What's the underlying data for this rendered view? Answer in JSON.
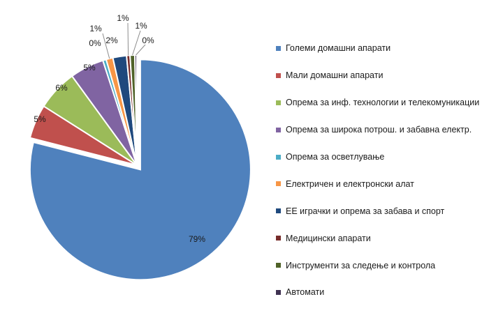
{
  "chart_data": {
    "type": "pie",
    "exploded_slices": [
      0
    ],
    "legend_position": "right",
    "slices": [
      {
        "label": "Големи домашни апарати",
        "value": 79,
        "value_label": "79%",
        "color": "#4F81BD"
      },
      {
        "label": "Мали домашни апарати",
        "value": 5,
        "value_label": "5%",
        "color": "#C0504D"
      },
      {
        "label": "Опрема за инф. технологии и телекомуникации",
        "value": 6,
        "value_label": "6%",
        "color": "#9BBB59"
      },
      {
        "label": "Опрема за широка потрош.  и забавна електр.",
        "value": 5,
        "value_label": "5%",
        "color": "#8064A2"
      },
      {
        "label": "Опрема за осветлување",
        "value": 0.5,
        "value_label": "0%",
        "color": "#4BACC6"
      },
      {
        "label": "Електричен и електронски  алат",
        "value": 1,
        "value_label": "1%",
        "color": "#F79646"
      },
      {
        "label": "ЕЕ играчки и опрема за забава и спорт",
        "value": 2,
        "value_label": "2%",
        "color": "#1F497D"
      },
      {
        "label": "Медицински апарати",
        "value": 0.5,
        "value_label": "1%",
        "color": "#772C2A"
      },
      {
        "label": "Инструменти за следење и контрола",
        "value": 0.7,
        "value_label": "1%",
        "color": "#4F6228"
      },
      {
        "label": "Автомати",
        "value": 0.3,
        "value_label": "0%",
        "color": "#3F3151"
      }
    ]
  }
}
